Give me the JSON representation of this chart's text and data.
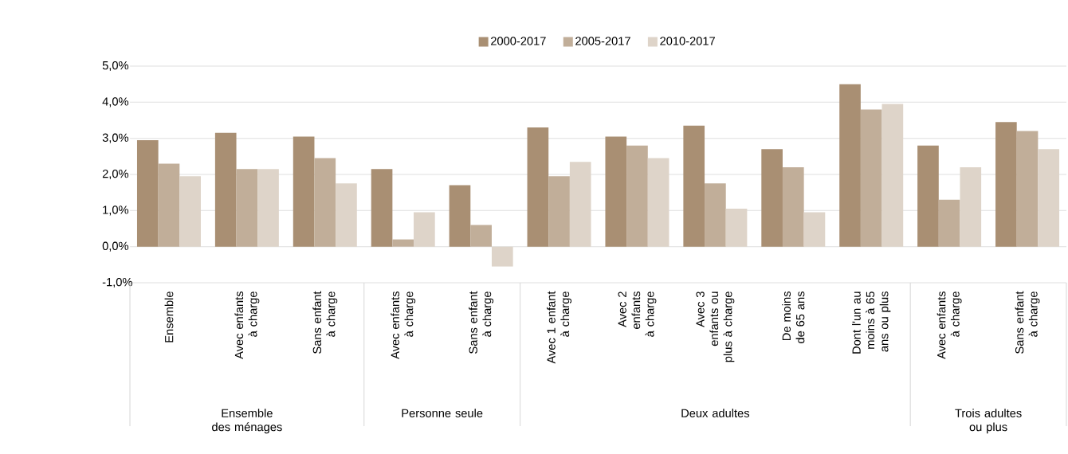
{
  "chart_data": {
    "type": "bar",
    "categories": [
      "Ensemble",
      "Avec enfants à charge",
      "Sans enfant à charge",
      "Avec enfants à charge",
      "Sans enfant à charge",
      "Avec 1 enfant à charge",
      "Avec 2 enfants à charge",
      "Avec 3 enfants ou plus à charge",
      "De moins de 65 ans",
      "Dont l'un au moins à 65 ans ou plus",
      "Avec enfants à charge",
      "Sans enfant à charge"
    ],
    "series": [
      {
        "name": "2000-2017",
        "color": "#a98f73",
        "values": [
          2.95,
          3.15,
          3.05,
          2.15,
          1.7,
          3.3,
          3.05,
          3.35,
          2.7,
          4.5,
          2.8,
          3.45
        ]
      },
      {
        "name": "2005-2017",
        "color": "#c1ae99",
        "values": [
          2.3,
          2.15,
          2.45,
          0.2,
          0.6,
          1.95,
          2.8,
          1.75,
          2.2,
          3.8,
          1.3,
          3.2
        ]
      },
      {
        "name": "2010-2017",
        "color": "#ded4c9",
        "values": [
          1.95,
          2.15,
          1.75,
          0.95,
          -0.55,
          2.35,
          2.45,
          1.05,
          0.95,
          3.95,
          2.2,
          2.7
        ]
      }
    ],
    "annotations": [
      "Ensemble des ménages",
      "Personne seule",
      "Deux adultes",
      "Trois adultes ou plus"
    ],
    "ylim": [
      -1,
      5
    ],
    "yticks": [
      {
        "value": -1,
        "label": "-1,0%"
      },
      {
        "value": 0,
        "label": "0,0%"
      },
      {
        "value": 1,
        "label": "1,0%"
      },
      {
        "value": 2,
        "label": "2,0%"
      },
      {
        "value": 3,
        "label": "3,0%"
      },
      {
        "value": 4,
        "label": "4,0%"
      },
      {
        "value": 5,
        "label": "5,0%"
      }
    ],
    "grid": "y",
    "legend": "top"
  }
}
